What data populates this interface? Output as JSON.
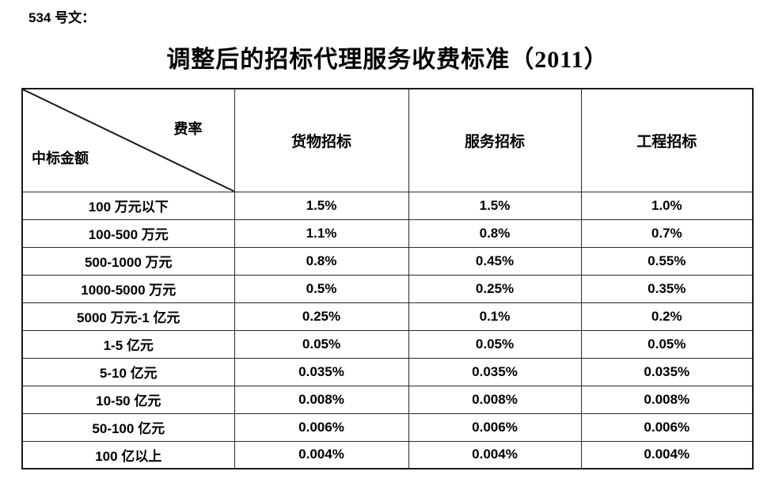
{
  "page": {
    "doc_number": "534 号文：",
    "title": "调整后的招标代理服务收费标准（2011）"
  },
  "table": {
    "corner": {
      "top_right": "费率",
      "bottom_left": "中标金额"
    },
    "columns": [
      "货物招标",
      "服务招标",
      "工程招标"
    ],
    "rows": [
      {
        "label": "100 万元以下",
        "values": [
          "1.5%",
          "1.5%",
          "1.0%"
        ]
      },
      {
        "label": "100-500 万元",
        "values": [
          "1.1%",
          "0.8%",
          "0.7%"
        ]
      },
      {
        "label": "500-1000 万元",
        "values": [
          "0.8%",
          "0.45%",
          "0.55%"
        ]
      },
      {
        "label": "1000-5000 万元",
        "values": [
          "0.5%",
          "0.25%",
          "0.35%"
        ]
      },
      {
        "label": "5000 万元-1 亿元",
        "values": [
          "0.25%",
          "0.1%",
          "0.2%"
        ]
      },
      {
        "label": "1-5 亿元",
        "values": [
          "0.05%",
          "0.05%",
          "0.05%"
        ]
      },
      {
        "label": "5-10 亿元",
        "values": [
          "0.035%",
          "0.035%",
          "0.035%"
        ]
      },
      {
        "label": "10-50 亿元",
        "values": [
          "0.008%",
          "0.008%",
          "0.008%"
        ]
      },
      {
        "label": "50-100 亿元",
        "values": [
          "0.006%",
          "0.006%",
          "0.006%"
        ]
      },
      {
        "label": "100 亿以上",
        "values": [
          "0.004%",
          "0.004%",
          "0.004%"
        ]
      }
    ],
    "colors": {
      "border": "#2a2a2a",
      "text": "#000000",
      "background": "#ffffff"
    }
  }
}
